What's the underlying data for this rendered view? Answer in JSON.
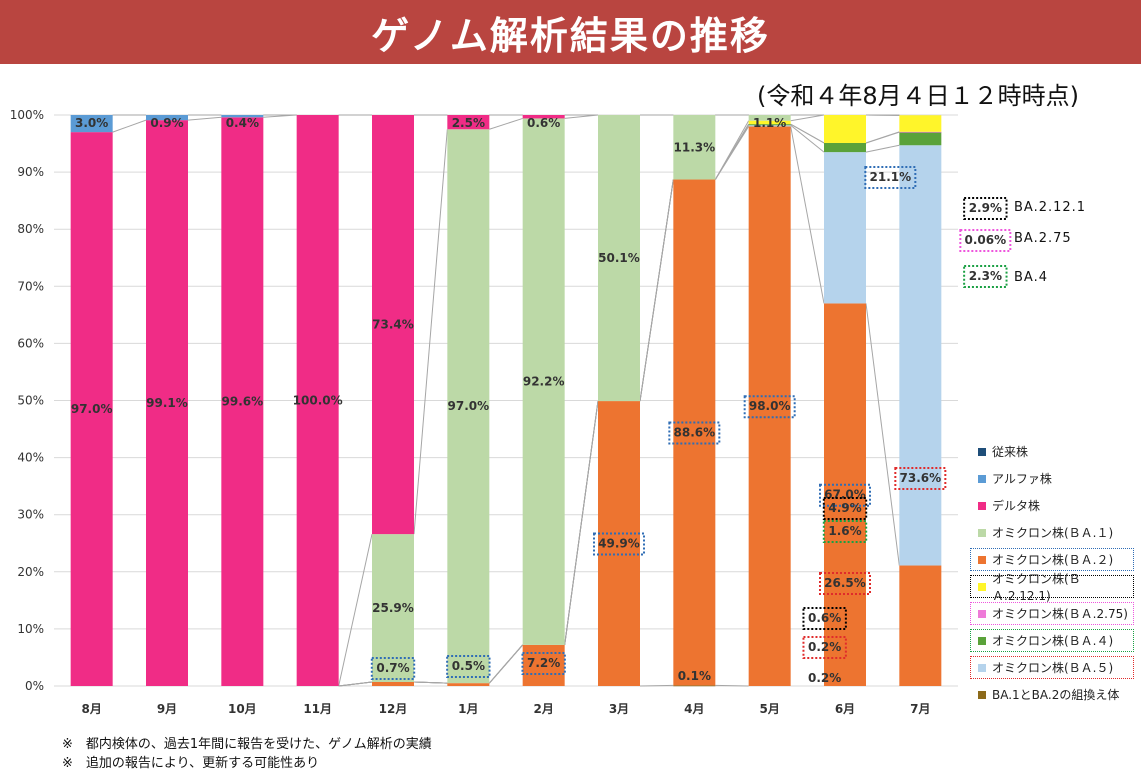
{
  "title": "ゲノム解析結果の推移",
  "as_of": "(令和４年8月４日１２時時点)",
  "notes": [
    "※　都内検体の、過去1年間に報告を受けた、ゲノム解析の実績",
    "※　追加の報告により、更新する可能性あり"
  ],
  "colors": {
    "banner": "#b94540",
    "従来株": "#1f4e79",
    "アルファ株": "#5b9bd5",
    "デルタ株": "#f02c86",
    "BA.1": "#bcd9a7",
    "BA.2": "#ed7430",
    "BA.2.12.1": "#fff52a",
    "BA.2.75": "#ee7bd8",
    "BA.4": "#5aa23a",
    "BA.5": "#b5d3ec",
    "BA.1とBA.2の組換え体": "#8c6a1a",
    "box_blue": "#2f6db5",
    "box_black": "#000000",
    "box_pink": "#ee55dd",
    "box_green": "#1aa043",
    "box_red": "#e02b2b"
  },
  "chart_data": {
    "type": "bar",
    "stacked": true,
    "normalized": true,
    "categories": [
      "8月",
      "9月",
      "10月",
      "11月",
      "12月",
      "1月",
      "2月",
      "3月",
      "4月",
      "5月",
      "6月",
      "7月"
    ],
    "y_ticks": [
      "0%",
      "10%",
      "20%",
      "30%",
      "40%",
      "50%",
      "60%",
      "70%",
      "80%",
      "90%",
      "100%"
    ],
    "ylim": [
      0,
      100
    ],
    "grid": true,
    "legend_position": "right",
    "series": [
      {
        "name": "従来株",
        "values": [
          0,
          0,
          0,
          0,
          0,
          0,
          0,
          0,
          0,
          0,
          0,
          0
        ]
      },
      {
        "name": "アルファ株",
        "values": [
          3.0,
          0.9,
          0.4,
          0,
          0,
          0,
          0,
          0,
          0,
          0,
          0,
          0
        ]
      },
      {
        "name": "デルタ株",
        "values": [
          97.0,
          99.1,
          99.6,
          100.0,
          73.4,
          2.5,
          0.6,
          0,
          0,
          0,
          0,
          0
        ]
      },
      {
        "name": "オミクロン株(ＢＡ.１)",
        "values": [
          0,
          0,
          0,
          0,
          25.9,
          97.0,
          92.2,
          50.1,
          11.3,
          1.1,
          0,
          0
        ]
      },
      {
        "name": "オミクロン株(ＢＡ.２)",
        "values": [
          0,
          0,
          0,
          0,
          0.7,
          0.5,
          7.2,
          49.9,
          88.6,
          98.0,
          67.0,
          21.1
        ]
      },
      {
        "name": "オミクロン株(ＢＡ.2.12.1)",
        "values": [
          0,
          0,
          0,
          0,
          0,
          0,
          0,
          0,
          0,
          0.6,
          4.9,
          2.9
        ]
      },
      {
        "name": "オミクロン株(ＢＡ.2.75)",
        "values": [
          0,
          0,
          0,
          0,
          0,
          0,
          0,
          0,
          0,
          0,
          0,
          0.06
        ]
      },
      {
        "name": "オミクロン株(ＢＡ.４)",
        "values": [
          0,
          0,
          0,
          0,
          0,
          0,
          0,
          0,
          0,
          0.2,
          1.6,
          2.3
        ]
      },
      {
        "name": "オミクロン株(ＢＡ.５)",
        "values": [
          0,
          0,
          0,
          0,
          0,
          0,
          0,
          0,
          0,
          0.2,
          26.5,
          73.6
        ]
      },
      {
        "name": "BA.1とBA.2の組換え体",
        "values": [
          0,
          0,
          0,
          0,
          0,
          0,
          0,
          0,
          0.1,
          0,
          0,
          0
        ]
      }
    ],
    "data_labels": [
      {
        "category": "8月",
        "series": "アルファ株",
        "text": "3.0%"
      },
      {
        "category": "8月",
        "series": "デルタ株",
        "text": "97.0%"
      },
      {
        "category": "9月",
        "series": "アルファ株",
        "text": "0.9%"
      },
      {
        "category": "9月",
        "series": "デルタ株",
        "text": "99.1%"
      },
      {
        "category": "10月",
        "series": "アルファ株",
        "text": "0.4%"
      },
      {
        "category": "10月",
        "series": "デルタ株",
        "text": "99.6%"
      },
      {
        "category": "11月",
        "series": "デルタ株",
        "text": "100.0%"
      },
      {
        "category": "12月",
        "series": "デルタ株",
        "text": "73.4%"
      },
      {
        "category": "12月",
        "series": "オミクロン株(ＢＡ.１)",
        "text": "25.9%"
      },
      {
        "category": "12月",
        "series": "オミクロン株(ＢＡ.２)",
        "text": "0.7%",
        "box": "blue"
      },
      {
        "category": "1月",
        "series": "デルタ株",
        "text": "2.5%"
      },
      {
        "category": "1月",
        "series": "オミクロン株(ＢＡ.１)",
        "text": "97.0%"
      },
      {
        "category": "1月",
        "series": "オミクロン株(ＢＡ.２)",
        "text": "0.5%",
        "box": "blue"
      },
      {
        "category": "2月",
        "series": "デルタ株",
        "text": "0.6%"
      },
      {
        "category": "2月",
        "series": "オミクロン株(ＢＡ.１)",
        "text": "92.2%"
      },
      {
        "category": "2月",
        "series": "オミクロン株(ＢＡ.２)",
        "text": "7.2%",
        "box": "blue"
      },
      {
        "category": "3月",
        "series": "オミクロン株(ＢＡ.１)",
        "text": "50.1%"
      },
      {
        "category": "3月",
        "series": "オミクロン株(ＢＡ.２)",
        "text": "49.9%",
        "box": "blue"
      },
      {
        "category": "4月",
        "series": "オミクロン株(ＢＡ.１)",
        "text": "11.3%"
      },
      {
        "category": "4月",
        "series": "オミクロン株(ＢＡ.２)",
        "text": "88.6%",
        "box": "blue"
      },
      {
        "category": "4月",
        "series": "BA.1とBA.2の組換え体",
        "text": "0.1%"
      },
      {
        "category": "5月",
        "series": "オミクロン株(ＢＡ.１)",
        "text": "1.1%"
      },
      {
        "category": "5月",
        "series": "オミクロン株(ＢＡ.２)",
        "text": "98.0%",
        "box": "blue"
      },
      {
        "category": "5月",
        "series": "オミクロン株(ＢＡ.2.12.1)",
        "text": "0.6%",
        "box": "black"
      },
      {
        "category": "5月",
        "series": "オミクロン株(ＢＡ.４)",
        "text": "0.2%",
        "box": "red"
      },
      {
        "category": "5月",
        "series": "オミクロン株(ＢＡ.５)",
        "text": "0.2%"
      },
      {
        "category": "6月",
        "series": "オミクロン株(ＢＡ.２)",
        "text": "67.0%",
        "box": "blue"
      },
      {
        "category": "6月",
        "series": "オミクロン株(ＢＡ.2.12.1)",
        "text": "4.9%",
        "box": "black"
      },
      {
        "category": "6月",
        "series": "オミクロン株(ＢＡ.４)",
        "text": "1.6%",
        "box": "green"
      },
      {
        "category": "6月",
        "series": "オミクロン株(ＢＡ.５)",
        "text": "26.5%",
        "box": "red"
      },
      {
        "category": "7月",
        "series": "オミクロン株(ＢＡ.２)",
        "text": "21.1%",
        "box": "blue"
      },
      {
        "category": "7月",
        "series": "オミクロン株(ＢＡ.2.12.1)",
        "text": "2.9%",
        "box": "black"
      },
      {
        "category": "7月",
        "series": "オミクロン株(ＢＡ.2.75)",
        "text": "0.06%",
        "box": "pink"
      },
      {
        "category": "7月",
        "series": "オミクロン株(ＢＡ.４)",
        "text": "2.3%",
        "box": "green"
      },
      {
        "category": "7月",
        "series": "オミクロン株(ＢＡ.５)",
        "text": "73.6%",
        "box": "red"
      }
    ],
    "side_labels": [
      {
        "text": "BA.2.12.1",
        "box": "black"
      },
      {
        "text": "BA.2.75",
        "box": "pink"
      },
      {
        "text": "BA.4",
        "box": "green"
      }
    ]
  }
}
